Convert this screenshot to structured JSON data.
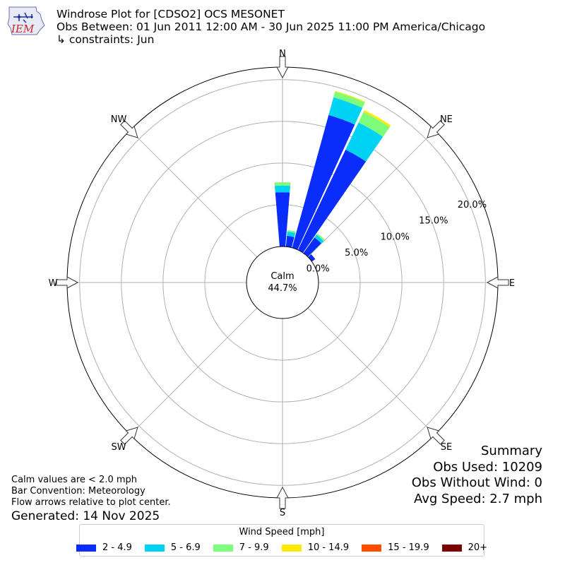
{
  "title": {
    "line1": "Windrose Plot for [CDSO2] OCS MESONET",
    "line2": "Obs Between: 01 Jun 2011 12:00 AM - 30 Jun 2025 11:00 PM America/Chicago",
    "line3": "↳ constraints: Jun"
  },
  "logo": {
    "text": "IEM"
  },
  "notes": {
    "calm_def": "Calm values are < 2.0 mph",
    "convention": "Bar Convention: Meteorology",
    "arrows": "Flow arrows relative to plot center.",
    "generated": "Generated: 14 Nov 2025"
  },
  "summary": {
    "heading": "Summary",
    "obs_used": "Obs Used: 10209",
    "obs_without_wind": "Obs Without Wind: 0",
    "avg_speed": "Avg Speed: 2.7 mph"
  },
  "chart_data": {
    "type": "windrose",
    "calm_label": "Calm",
    "calm_value": "44.7%",
    "radial_ticks": [
      0,
      5,
      10,
      15,
      20
    ],
    "radial_tick_labels": [
      "0.0%",
      "5.0%",
      "10.0%",
      "15.0%",
      "20.0%"
    ],
    "rmax": 21.5,
    "directions": [
      "N",
      "NE",
      "E",
      "SE",
      "S",
      "SW",
      "W",
      "NW"
    ],
    "legend_title": "Wind Speed [mph]",
    "speed_bins": [
      {
        "label": "2 - 4.9",
        "color": "#0b2dfb"
      },
      {
        "label": "5 - 6.9",
        "color": "#00d2f4"
      },
      {
        "label": "7 - 9.9",
        "color": "#7dfd7a"
      },
      {
        "label": "10 - 14.9",
        "color": "#ffea00"
      },
      {
        "label": "15 - 19.9",
        "color": "#ff4b00"
      },
      {
        "label": "20+",
        "color": "#7d0000"
      }
    ],
    "sectors": [
      {
        "direction_deg": 0,
        "values": [
          6.5,
          0.8,
          0.4,
          0.0,
          0.0,
          0.0
        ]
      },
      {
        "direction_deg": 10,
        "values": [
          1.3,
          0.5,
          0.2,
          0.0,
          0.0,
          0.0
        ]
      },
      {
        "direction_deg": 20,
        "values": [
          16.5,
          2.2,
          0.7,
          0.1,
          0.0,
          0.0
        ]
      },
      {
        "direction_deg": 30,
        "values": [
          13.3,
          3.6,
          1.4,
          0.25,
          0.0,
          0.0
        ]
      },
      {
        "direction_deg": 40,
        "values": [
          2.3,
          0.4,
          0.2,
          0.0,
          0.0,
          0.0
        ]
      },
      {
        "direction_deg": 50,
        "values": [
          0.5,
          0.0,
          0.0,
          0.0,
          0.0,
          0.0
        ]
      }
    ]
  }
}
